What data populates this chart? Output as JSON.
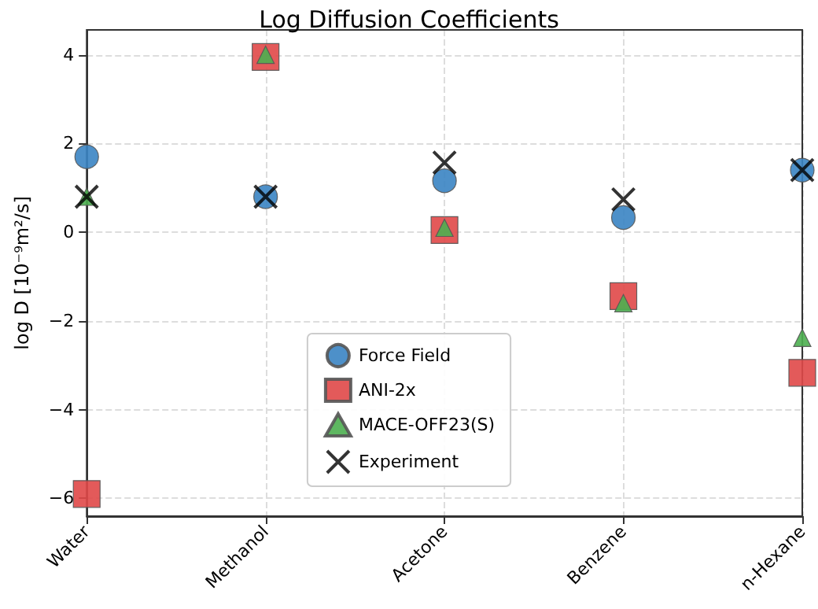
{
  "chart_data": {
    "type": "scatter",
    "title": "Log Diffusion Coefficients",
    "ylabel": "log D [10⁻⁹m²/s]",
    "categories": [
      "Water",
      "Methanol",
      "Acetone",
      "Benzene",
      "n-Hexane"
    ],
    "series": [
      {
        "name": "Force Field",
        "color": "#3a84c3",
        "marker": "circle",
        "values": [
          1.7,
          0.8,
          1.16,
          0.33,
          1.4
        ]
      },
      {
        "name": "ANI-2x",
        "color": "#e04848",
        "marker": "square",
        "values": [
          -5.9,
          3.95,
          0.05,
          -1.44,
          -3.17
        ]
      },
      {
        "name": "MACE-OFF23(S)",
        "color": "#4caf50",
        "marker": "triangle",
        "values": [
          0.8,
          4.0,
          0.1,
          -1.6,
          -2.38
        ]
      },
      {
        "name": "Experiment",
        "color": "#000000",
        "marker": "cross",
        "values": [
          0.8,
          0.8,
          1.57,
          0.74,
          1.4
        ]
      }
    ],
    "ylim": [
      -6.4,
      4.56
    ],
    "yticks": [
      -6,
      -4,
      -2,
      0,
      2,
      4
    ],
    "grid": true,
    "legend": "bottom"
  }
}
